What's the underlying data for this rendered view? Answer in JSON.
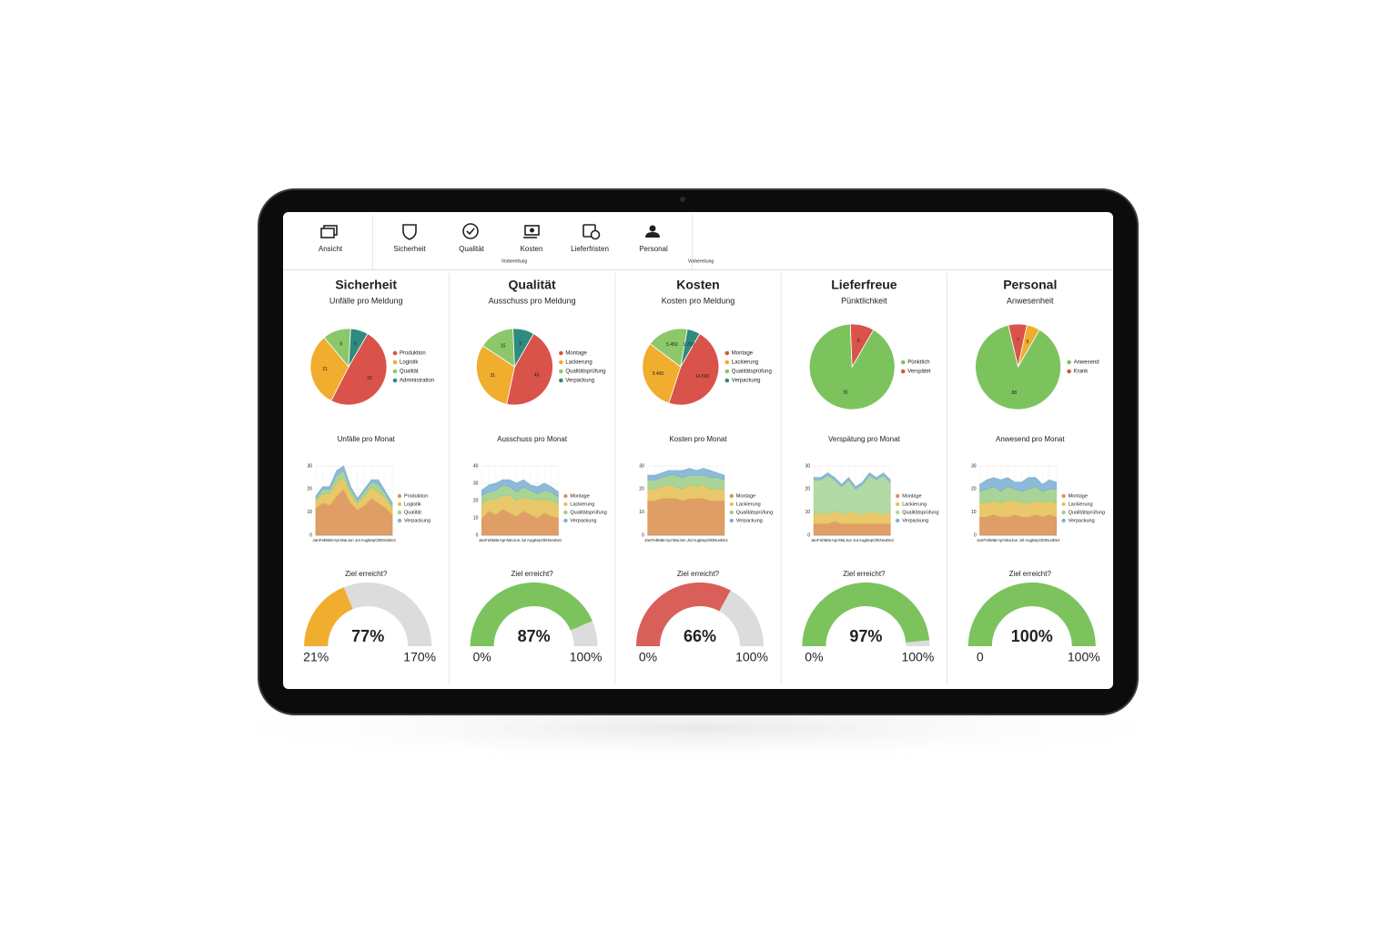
{
  "nav": {
    "items": [
      "Ansicht",
      "Sicherheit",
      "Qualität",
      "Kosten",
      "Lieferfristen",
      "Personal"
    ],
    "notes": [
      "Vorbereitung",
      "Vorbereitung"
    ]
  },
  "months": [
    "Jan",
    "Feb",
    "Mär",
    "Apr",
    "Mai",
    "Jun",
    "Jul",
    "Aug",
    "Sep",
    "Okt",
    "Nov",
    "Dez"
  ],
  "panels": [
    {
      "title": "Sicherheit",
      "subtitle": "Unfälle pro Meldung",
      "pie": {
        "type": "pie",
        "values": [
          33,
          21,
          8,
          5
        ],
        "names": [
          "Produktion",
          "Logistik",
          "Qualität",
          "Administration"
        ],
        "colors": [
          "#d9534a",
          "#f0ad2e",
          "#8cc76a",
          "#2f8a80"
        ]
      },
      "area": {
        "type": "area",
        "title": "Unfälle pro Monat",
        "ylim": [
          0,
          30
        ],
        "yticks": [
          0,
          10,
          20,
          30
        ],
        "series": [
          {
            "name": "Produktion",
            "color": "#dd9356",
            "values": [
              12,
              14,
              13,
              17,
              20,
              14,
              11,
              13,
              16,
              14,
              12,
              9
            ]
          },
          {
            "name": "Logistik",
            "color": "#e5c25a",
            "values": [
              3,
              4,
              5,
              6,
              5,
              4,
              3,
              4,
              5,
              5,
              4,
              3
            ]
          },
          {
            "name": "Qualität",
            "color": "#9fcf8c",
            "values": [
              1,
              2,
              2,
              3,
              3,
              2,
              1,
              2,
              2,
              3,
              2,
              1
            ]
          },
          {
            "name": "Verpackung",
            "color": "#7fb2d4",
            "values": [
              1,
              1,
              1,
              2,
              2,
              1,
              1,
              1,
              1,
              2,
              1,
              1
            ]
          }
        ]
      },
      "gauge": {
        "type": "gauge",
        "title": "Ziel erreicht?",
        "value": 77,
        "value_label": "77%",
        "min": 21,
        "min_label": "21%",
        "max": 170,
        "max_label": "170%",
        "color": "#f0ad2e"
      }
    },
    {
      "title": "Qualität",
      "subtitle": "Ausschuss pro Meldung",
      "pie": {
        "type": "pie",
        "values": [
          45,
          31,
          15,
          9
        ],
        "names": [
          "Montage",
          "Lackierung",
          "Qualitätsprüfung",
          "Verpackung"
        ],
        "colors": [
          "#d9534a",
          "#f0ad2e",
          "#8cc76a",
          "#2f8a80"
        ]
      },
      "area": {
        "type": "area",
        "title": "Ausschuss pro Monat",
        "ylim": [
          0,
          40
        ],
        "yticks": [
          0,
          10,
          20,
          30,
          40
        ],
        "series": [
          {
            "name": "Montage",
            "color": "#dd9356",
            "values": [
              10,
              14,
              12,
              15,
              13,
              11,
              14,
              12,
              10,
              13,
              11,
              10
            ]
          },
          {
            "name": "Lackierung",
            "color": "#e5c25a",
            "values": [
              8,
              7,
              9,
              8,
              10,
              9,
              8,
              9,
              10,
              8,
              9,
              8
            ]
          },
          {
            "name": "Qualitätsprüfung",
            "color": "#9fcf8c",
            "values": [
              5,
              4,
              5,
              6,
              5,
              5,
              6,
              5,
              4,
              5,
              5,
              4
            ]
          },
          {
            "name": "Verpackung",
            "color": "#7fb2d4",
            "values": [
              3,
              4,
              4,
              3,
              4,
              5,
              4,
              3,
              4,
              4,
              3,
              3
            ]
          }
        ]
      },
      "gauge": {
        "type": "gauge",
        "title": "Ziel erreicht?",
        "value": 87,
        "value_label": "87%",
        "min": 0,
        "min_label": "0%",
        "max": 100,
        "max_label": "100%",
        "color": "#7cc35e"
      }
    },
    {
      "title": "Kosten",
      "subtitle": "Kosten pro Meldung",
      "pie": {
        "type": "pie",
        "values": [
          14500,
          9400,
          5450,
          1710
        ],
        "value_labels": [
          "14.500",
          "9.400",
          "5.450",
          "1.710"
        ],
        "names": [
          "Montage",
          "Lackierung",
          "Qualitätsprüfung",
          "Verpackung"
        ],
        "colors": [
          "#d9534a",
          "#f0ad2e",
          "#8cc76a",
          "#2f8a80"
        ]
      },
      "area": {
        "type": "area",
        "title": "Kosten pro Monat",
        "ylim": [
          0,
          30
        ],
        "yticks": [
          0,
          10,
          20,
          30
        ],
        "series": [
          {
            "name": "Montage",
            "color": "#dd9356",
            "values": [
              15,
              15,
              16,
              16,
              16,
              15,
              16,
              16,
              16,
              15,
              15,
              15
            ]
          },
          {
            "name": "Lackierung",
            "color": "#e5c25a",
            "values": [
              5,
              5,
              5,
              6,
              5,
              5,
              6,
              5,
              6,
              5,
              5,
              5
            ]
          },
          {
            "name": "Qualitätsprüfung",
            "color": "#9fcf8c",
            "values": [
              4,
              4,
              4,
              4,
              5,
              5,
              4,
              5,
              4,
              5,
              5,
              4
            ]
          },
          {
            "name": "Verpackung",
            "color": "#7fb2d4",
            "values": [
              2,
              2,
              2,
              2,
              2,
              3,
              3,
              2,
              3,
              3,
              2,
              2
            ]
          }
        ]
      },
      "gauge": {
        "type": "gauge",
        "title": "Ziel erreicht?",
        "value": 66,
        "value_label": "66%",
        "min": 0,
        "min_label": "0%",
        "max": 100,
        "max_label": "100%",
        "color": "#d9605a"
      }
    },
    {
      "title": "Lieferfreue",
      "subtitle": "Pünktlichkeit",
      "pie": {
        "type": "pie",
        "values": [
          91,
          9
        ],
        "names": [
          "Pünktlich",
          "Verspätet"
        ],
        "colors": [
          "#7cc35e",
          "#d9534a"
        ]
      },
      "area": {
        "type": "area",
        "title": "Verspätung pro Monat",
        "ylim": [
          0,
          30
        ],
        "yticks": [
          0,
          10,
          20,
          30
        ],
        "series": [
          {
            "name": "Montage",
            "color": "#dd9356",
            "values": [
              5,
              5,
              5,
              6,
              5,
              5,
              5,
              5,
              5,
              5,
              5,
              5
            ]
          },
          {
            "name": "Lackierung",
            "color": "#e5c25a",
            "values": [
              4,
              5,
              4,
              5,
              4,
              5,
              5,
              4,
              5,
              5,
              4,
              5
            ]
          },
          {
            "name": "Qualitätsprüfung",
            "color": "#a9d69a",
            "values": [
              15,
              14,
              17,
              13,
              12,
              14,
              10,
              13,
              16,
              14,
              17,
              13
            ]
          },
          {
            "name": "Verpackung",
            "color": "#7fb2d4",
            "values": [
              1,
              1,
              1,
              1,
              1,
              1,
              1,
              1,
              1,
              1,
              1,
              1
            ]
          }
        ]
      },
      "gauge": {
        "type": "gauge",
        "title": "Ziel erreicht?",
        "value": 97,
        "value_label": "97%",
        "min": 0,
        "min_label": "0%",
        "max": 100,
        "max_label": "100%",
        "color": "#7cc35e"
      }
    },
    {
      "title": "Personal",
      "subtitle": "Anwesenheit",
      "pie": {
        "type": "pie",
        "values": [
          88,
          7,
          5
        ],
        "names": [
          "Anwesend",
          "Krank",
          null
        ],
        "colors": [
          "#7cc35e",
          "#d9534a",
          "#f0ad2e"
        ]
      },
      "area": {
        "type": "area",
        "title": "Anwesend pro Monat",
        "ylim": [
          0,
          30
        ],
        "yticks": [
          0,
          10,
          20,
          30
        ],
        "series": [
          {
            "name": "Montage",
            "color": "#dd9356",
            "values": [
              8,
              8,
              9,
              8,
              8,
              9,
              8,
              8,
              9,
              8,
              9,
              8
            ]
          },
          {
            "name": "Lackierung",
            "color": "#e5c25a",
            "values": [
              6,
              6,
              6,
              6,
              7,
              6,
              6,
              6,
              6,
              6,
              6,
              6
            ]
          },
          {
            "name": "Qualitätsprüfung",
            "color": "#9fcf8c",
            "values": [
              5,
              6,
              6,
              5,
              6,
              5,
              5,
              6,
              6,
              5,
              5,
              6
            ]
          },
          {
            "name": "Verpackung",
            "color": "#7fb2d4",
            "values": [
              3,
              4,
              4,
              5,
              4,
              3,
              4,
              5,
              4,
              3,
              4,
              3
            ]
          }
        ]
      },
      "gauge": {
        "type": "gauge",
        "title": "Ziel erreicht?",
        "value": 100,
        "value_label": "100%",
        "min": 0,
        "min_label": "0",
        "max": 100,
        "max_label": "100%",
        "color": "#7cc35e"
      }
    }
  ]
}
